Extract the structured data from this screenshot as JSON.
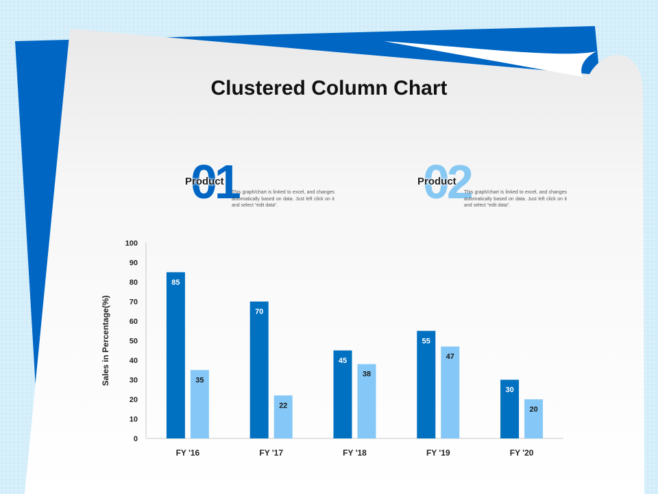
{
  "colors": {
    "series_dark": "#0070c0",
    "series_light": "#85c8f7",
    "accent_blue": "#0066c4",
    "background": "#d6effa"
  },
  "page": {
    "title": "Clustered Column Chart"
  },
  "products": [
    {
      "number": "01",
      "label": "Product",
      "description": "This graph/chart is linked to excel, and changes automatically based on data. Just left click on it and select “edit data”."
    },
    {
      "number": "02",
      "label": "Product",
      "description": "This graph/chart is linked to excel, and changes automatically based on data. Just left click on it and select “edit data”."
    }
  ],
  "chart_data": {
    "type": "bar",
    "title": "",
    "xlabel": "",
    "ylabel": "Sales in Percentage(%)",
    "categories": [
      "FY '16",
      "FY '17",
      "FY '18",
      "FY '19",
      "FY '20"
    ],
    "series": [
      {
        "values": [
          85,
          70,
          45,
          55,
          30
        ],
        "color": "#0070c0"
      },
      {
        "values": [
          35,
          22,
          38,
          47,
          20
        ],
        "color": "#85c8f7"
      }
    ],
    "ylim": [
      0,
      100
    ],
    "yticks": [
      0,
      10,
      20,
      30,
      40,
      50,
      60,
      70,
      80,
      90,
      100
    ],
    "grid": false,
    "legend": "none",
    "data_labels": true
  }
}
